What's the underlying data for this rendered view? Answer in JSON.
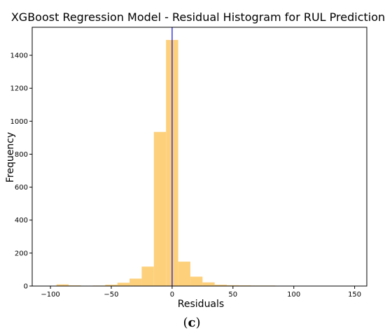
{
  "chart_data": {
    "type": "bar",
    "title": "XGBoost Regression Model - Residual Histogram for RUL Prediction",
    "xlabel": "Residuals",
    "ylabel": "Frequency",
    "xlim": [
      -115,
      160
    ],
    "ylim": [
      0,
      1570
    ],
    "xticks": [
      -100,
      -50,
      0,
      50,
      100,
      150
    ],
    "yticks": [
      0,
      200,
      400,
      600,
      800,
      1000,
      1200,
      1400
    ],
    "bin_width": 10,
    "bins": [
      {
        "start": -95,
        "end": -85,
        "count": 10
      },
      {
        "start": -85,
        "end": -75,
        "count": 4
      },
      {
        "start": -75,
        "end": -65,
        "count": 2
      },
      {
        "start": -65,
        "end": -55,
        "count": 3
      },
      {
        "start": -55,
        "end": -45,
        "count": 8
      },
      {
        "start": -45,
        "end": -35,
        "count": 20
      },
      {
        "start": -35,
        "end": -25,
        "count": 45
      },
      {
        "start": -25,
        "end": -15,
        "count": 118
      },
      {
        "start": -15,
        "end": -5,
        "count": 935
      },
      {
        "start": -5,
        "end": 5,
        "count": 1493
      },
      {
        "start": 5,
        "end": 15,
        "count": 148
      },
      {
        "start": 15,
        "end": 25,
        "count": 57
      },
      {
        "start": 25,
        "end": 35,
        "count": 22
      },
      {
        "start": 35,
        "end": 45,
        "count": 8
      },
      {
        "start": 45,
        "end": 55,
        "count": 5
      },
      {
        "start": 55,
        "end": 65,
        "count": 4
      },
      {
        "start": 65,
        "end": 75,
        "count": 3
      },
      {
        "start": 75,
        "end": 85,
        "count": 3
      },
      {
        "start": 85,
        "end": 95,
        "count": 2
      },
      {
        "start": 95,
        "end": 105,
        "count": 2
      },
      {
        "start": 105,
        "end": 115,
        "count": 1
      }
    ],
    "reference_line": {
      "x": 0
    },
    "colors": {
      "bar": "#fdd07b",
      "reference_line": "#1f1fd6",
      "axis": "#000000"
    },
    "grid": false
  },
  "caption": {
    "open": "(",
    "letter": "c",
    "close": ")"
  }
}
